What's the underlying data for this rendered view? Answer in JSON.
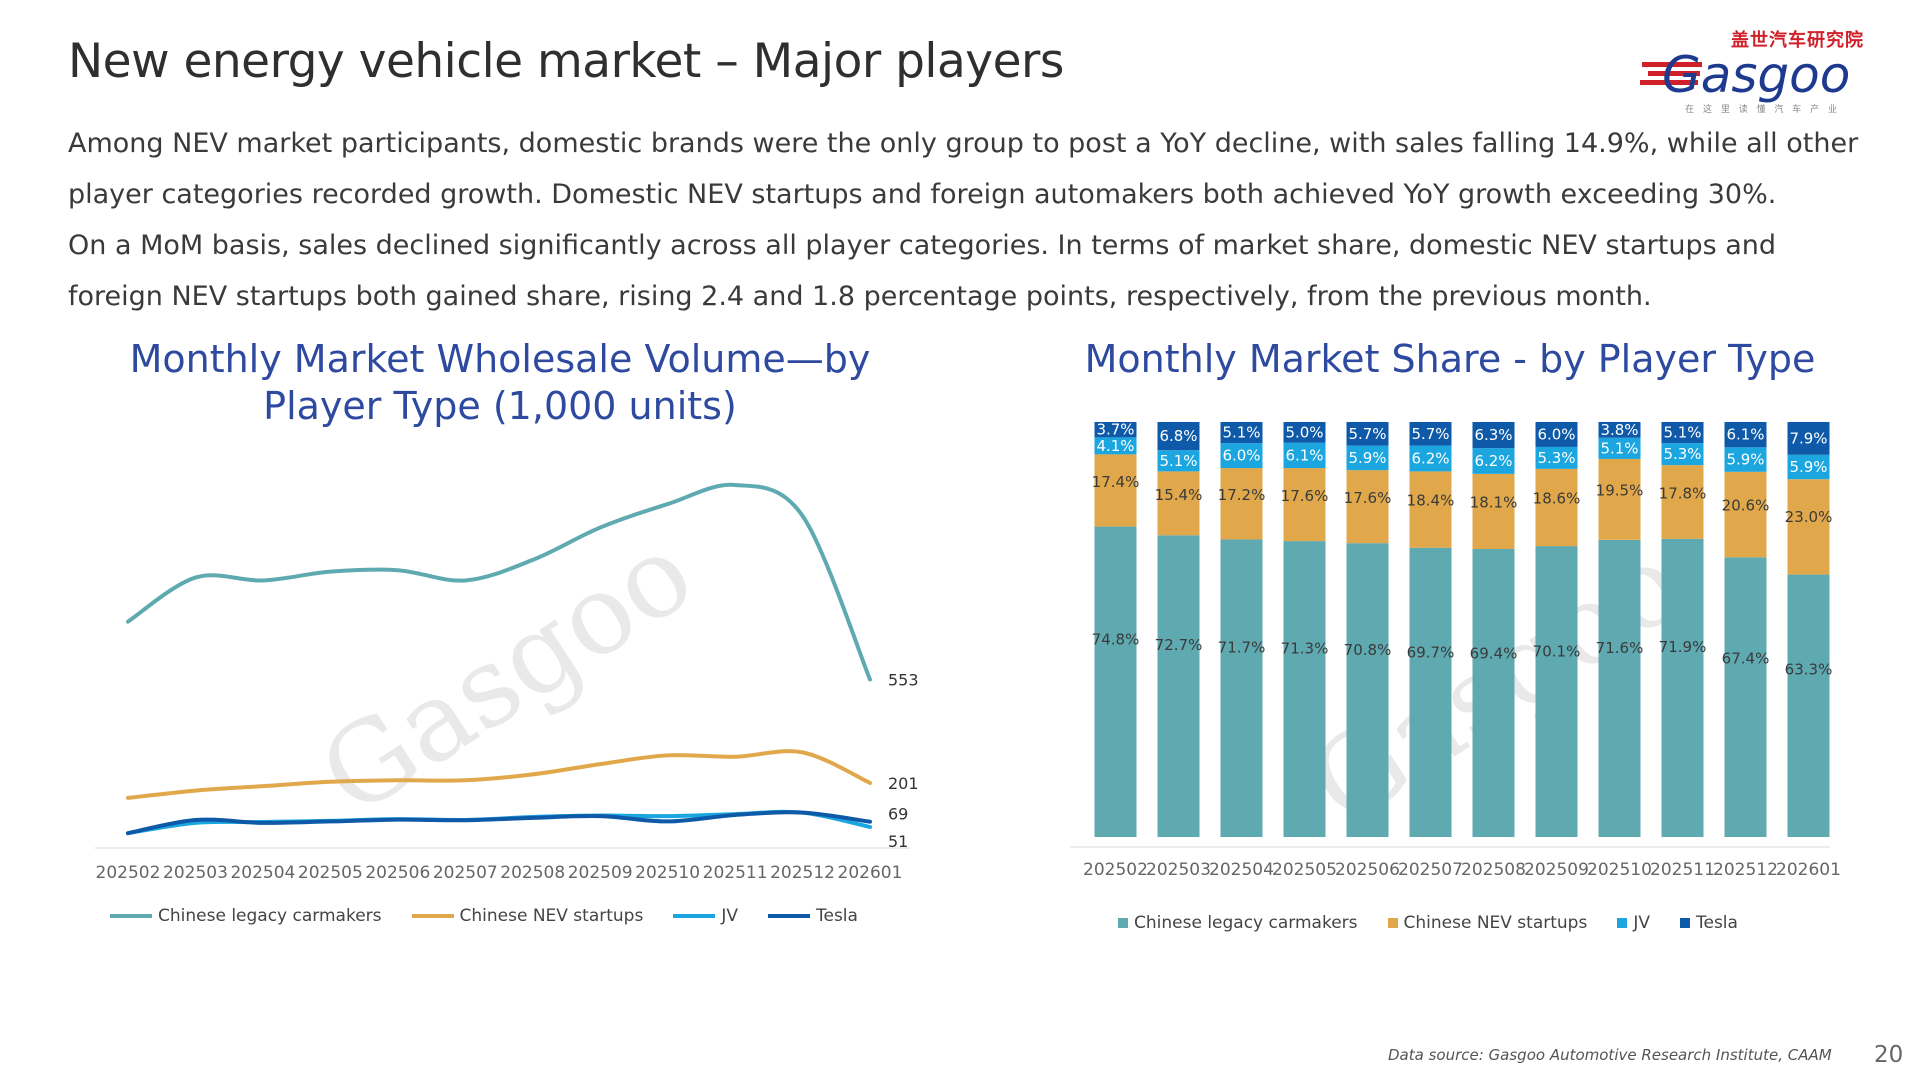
{
  "slide": {
    "title": "New energy vehicle market – Major players",
    "paragraph1": "Among NEV market participants, domestic brands were the only group to post a YoY decline, with sales falling 14.9%, while all other player categories recorded growth. Domestic NEV startups and foreign automakers both achieved YoY growth exceeding 30%.",
    "paragraph2": "On a MoM basis, sales declined significantly across all player categories. In terms of market share, domestic NEV startups and foreign NEV startups both gained share, rising 2.4 and 1.8 percentage points, respectively, from the previous month.",
    "source": "Data source: Gasgoo Automotive Research Institute, CAAM",
    "page_number": "20"
  },
  "logo": {
    "chinese": "盖世汽车研究院",
    "brand": "Gasgoo",
    "tagline": "在 这 里 读 懂 汽 车 产 业",
    "watermark": "Gasgoo"
  },
  "colors": {
    "legacy": "#5fa9b1",
    "startups": "#e0a84a",
    "jv": "#1ba6e0",
    "tesla": "#0f5aa8",
    "title": "#2e4aa0"
  },
  "chart_data": [
    {
      "type": "line",
      "title": "Monthly Market Wholesale Volume—by Player Type (1,000 units)",
      "categories": [
        "202502",
        "202503",
        "202504",
        "202505",
        "202506",
        "202507",
        "202508",
        "202509",
        "202510",
        "202511",
        "202512",
        "202601"
      ],
      "series": [
        {
          "name": "Chinese legacy carmakers",
          "values": [
            750,
            900,
            890,
            920,
            925,
            890,
            960,
            1070,
            1150,
            1215,
            1110,
            553
          ],
          "end_label": "553"
        },
        {
          "name": "Chinese NEV startups",
          "values": [
            150,
            175,
            190,
            205,
            210,
            210,
            230,
            265,
            295,
            290,
            305,
            201
          ],
          "end_label": "201"
        },
        {
          "name": "JV",
          "values": [
            30,
            65,
            68,
            72,
            78,
            75,
            85,
            90,
            88,
            95,
            100,
            51
          ],
          "end_label": "51"
        },
        {
          "name": "Tesla",
          "values": [
            30,
            75,
            65,
            70,
            76,
            74,
            82,
            88,
            70,
            92,
            100,
            69
          ],
          "end_label": "69"
        }
      ],
      "ylim": [
        0,
        1300
      ],
      "legend": "bottom"
    },
    {
      "type": "bar",
      "stacked": true,
      "title": "Monthly Market Share - by Player Type",
      "categories": [
        "202502",
        "202503",
        "202504",
        "202505",
        "202506",
        "202507",
        "202508",
        "202509",
        "202510",
        "202511",
        "202512",
        "202601"
      ],
      "series": [
        {
          "name": "Chinese legacy carmakers",
          "values": [
            74.8,
            72.7,
            71.7,
            71.3,
            70.8,
            69.7,
            69.4,
            70.1,
            71.6,
            71.9,
            67.4,
            63.3
          ],
          "labels": [
            "74.8%",
            "72.7%",
            "71.7%",
            "71.3%",
            "70.8%",
            "69.7%",
            "69.4%",
            "70.1%",
            "71.6%",
            "71.9%",
            "67.4%",
            "63.3%"
          ]
        },
        {
          "name": "Chinese NEV startups",
          "values": [
            17.4,
            15.4,
            17.2,
            17.6,
            17.6,
            18.4,
            18.1,
            18.6,
            19.5,
            17.8,
            20.6,
            23.0
          ],
          "labels": [
            "17.4%",
            "15.4%",
            "17.2%",
            "17.6%",
            "17.6%",
            "18.4%",
            "18.1%",
            "18.6%",
            "19.5%",
            "17.8%",
            "20.6%",
            "23.0%"
          ]
        },
        {
          "name": "JV",
          "values": [
            4.1,
            5.1,
            6.0,
            6.1,
            5.9,
            6.2,
            6.2,
            5.3,
            5.1,
            5.3,
            5.9,
            5.9
          ],
          "labels": [
            "4.1%",
            "5.1%",
            "6.0%",
            "6.1%",
            "5.9%",
            "6.2%",
            "6.2%",
            "5.3%",
            "5.1%",
            "5.3%",
            "5.9%",
            "5.9%"
          ]
        },
        {
          "name": "Tesla",
          "values": [
            3.7,
            6.8,
            5.1,
            5.0,
            5.7,
            5.7,
            6.3,
            6.0,
            3.8,
            5.1,
            6.1,
            7.9
          ],
          "labels": [
            "3.7%",
            "6.8%",
            "5.1%",
            "5.0%",
            "5.7%",
            "5.7%",
            "6.3%",
            "6.0%",
            "3.8%",
            "5.1%",
            "6.1%",
            "7.9%"
          ]
        }
      ],
      "ylim": [
        0,
        100
      ],
      "legend": "bottom"
    }
  ]
}
